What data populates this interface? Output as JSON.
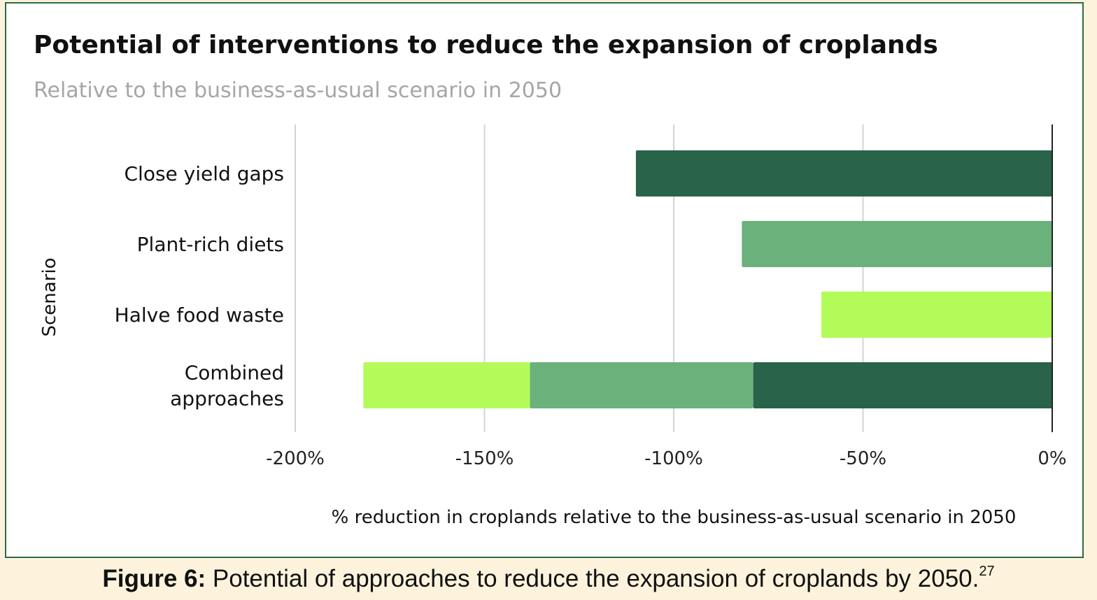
{
  "chart_data": {
    "type": "bar",
    "orientation": "horizontal",
    "stacked": true,
    "title": "Potential of interventions to reduce the expansion of croplands",
    "subtitle": "Relative to the business-as-usual scenario in 2050",
    "xlabel": "% reduction in croplands relative to the business-as-usual scenario in 2050",
    "ylabel": "Scenario",
    "xlim": [
      -200,
      0
    ],
    "xticks": [
      {
        "value": -200,
        "label": "-200%"
      },
      {
        "value": -150,
        "label": "-150%"
      },
      {
        "value": -100,
        "label": "-100%"
      },
      {
        "value": -50,
        "label": "-50%"
      },
      {
        "value": 0,
        "label": "0%"
      }
    ],
    "grid": "vertical",
    "categories": [
      {
        "label": "Close yield gaps",
        "lines": [
          "Close yield gaps"
        ]
      },
      {
        "label": "Plant-rich diets",
        "lines": [
          "Plant-rich diets"
        ]
      },
      {
        "label": "Halve food waste",
        "lines": [
          "Halve food waste"
        ]
      },
      {
        "label": "Combined approaches",
        "lines": [
          "Combined",
          "approaches"
        ]
      }
    ],
    "series": [
      {
        "name": "Close yield gaps",
        "color": "#28634a",
        "values": [
          -110,
          0,
          0,
          -79
        ]
      },
      {
        "name": "Plant-rich diets",
        "color": "#6ab17c",
        "values": [
          0,
          -82,
          0,
          -59
        ]
      },
      {
        "name": "Halve food waste",
        "color": "#b3fb59",
        "values": [
          0,
          0,
          -61,
          -44
        ]
      }
    ]
  },
  "caption": {
    "label": "Figure 6:",
    "text": "Potential of approaches to reduce the expansion of croplands by 2050.",
    "ref": "27"
  },
  "colors": {
    "border": "#2d6b48",
    "background": "#fdf3dc",
    "grid": "#d4d4d4",
    "axis": "#222222"
  }
}
